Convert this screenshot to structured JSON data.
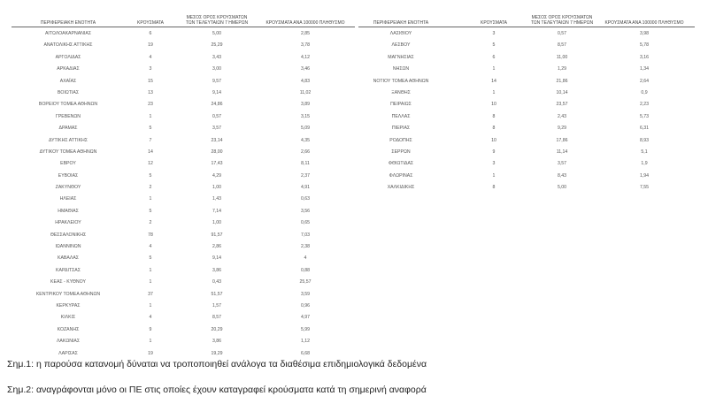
{
  "headers": {
    "region": "ΠΕΡΙΦΕΡΕΙΑΚΗ ΕΝΟΤΗΤΑ",
    "cases": "ΚΡΟΥΣΜΑΤΑ",
    "avg": "ΜΕΣΟΣ ΟΡΟΣ ΚΡΟΥΣΜΑΤΩΝ ΤΩΝ ΤΕΛΕΥΤΑΙΩΝ 7 ΗΜΕΡΩΝ",
    "per100k": "ΚΡΟΥΣΜΑΤΑ ΑΝΑ 100000 ΠΛΗΘΥΣΜΟ"
  },
  "left_rows": [
    [
      "ΑΙΤΩΛΟΑΚΑΡΝΑΝΙΑΣ",
      "6",
      "5,00",
      "2,85"
    ],
    [
      "ΑΝΑΤΟΛΙΚΗΣ ΑΤΤΙΚΗΣ",
      "19",
      "25,29",
      "3,78"
    ],
    [
      "ΑΡΓΟΛΙΔΑΣ",
      "4",
      "3,43",
      "4,12"
    ],
    [
      "ΑΡΚΑΔΙΑΣ",
      "3",
      "3,00",
      "3,46"
    ],
    [
      "ΑΧΑΪΑΣ",
      "15",
      "9,57",
      "4,83"
    ],
    [
      "ΒΟΙΩΤΙΑΣ",
      "13",
      "9,14",
      "11,02"
    ],
    [
      "ΒΟΡΕΙΟΥ ΤΟΜΕΑ ΑΘΗΝΩΝ",
      "23",
      "24,86",
      "3,89"
    ],
    [
      "ΓΡΕΒΕΝΩΝ",
      "1",
      "0,57",
      "3,15"
    ],
    [
      "ΔΡΑΜΑΣ",
      "5",
      "3,57",
      "5,09"
    ],
    [
      "ΔΥΤΙΚΗΣ ΑΤΤΙΚΗΣ",
      "7",
      "23,14",
      "4,35"
    ],
    [
      "ΔΥΤΙΚΟΥ ΤΟΜΕΑ ΑΘΗΝΩΝ",
      "14",
      "28,00",
      "2,66"
    ],
    [
      "ΕΒΡΟΥ",
      "12",
      "17,43",
      "8,11"
    ],
    [
      "ΕΥΒΟΙΑΣ",
      "5",
      "4,29",
      "2,37"
    ],
    [
      "ΖΑΚΥΝΘΟΥ",
      "2",
      "1,00",
      "4,91"
    ],
    [
      "ΗΛΕΙΑΣ",
      "1",
      "1,43",
      "0,63"
    ],
    [
      "ΗΜΑΘΙΑΣ",
      "5",
      "7,14",
      "3,56"
    ],
    [
      "ΗΡΑΚΛΕΙΟΥ",
      "2",
      "1,00",
      "0,65"
    ],
    [
      "ΘΕΣΣΑΛΟΝΙΚΗΣ",
      "78",
      "91,57",
      "7,03"
    ],
    [
      "ΙΩΑΝΝΙΝΩΝ",
      "4",
      "2,86",
      "2,38"
    ],
    [
      "ΚΑΒΑΛΑΣ",
      "5",
      "9,14",
      "4"
    ],
    [
      "ΚΑΡΔΙΤΣΑΣ",
      "1",
      "3,86",
      "0,88"
    ],
    [
      "ΚΕΑΣ - ΚΥΘΝΟΥ",
      "1",
      "0,43",
      "25,57"
    ],
    [
      "ΚΕΝΤΡΙΚΟΥ ΤΟΜΕΑ ΑΘΗΝΩΝ",
      "37",
      "51,57",
      "3,59"
    ],
    [
      "ΚΕΡΚΥΡΑΣ",
      "1",
      "1,57",
      "0,96"
    ],
    [
      "ΚΙΛΚΙΣ",
      "4",
      "8,57",
      "4,97"
    ],
    [
      "ΚΟΖΑΝΗΣ",
      "9",
      "20,29",
      "5,99"
    ],
    [
      "ΛΑΚΩΝΙΑΣ",
      "1",
      "3,86",
      "1,12"
    ],
    [
      "ΛΑΡΙΣΑΣ",
      "19",
      "19,29",
      "6,68"
    ]
  ],
  "right_rows": [
    [
      "ΛΑΣΙΘΙΟΥ",
      "3",
      "0,57",
      "3,98"
    ],
    [
      "ΛΕΣΒΟΥ",
      "5",
      "8,57",
      "5,78"
    ],
    [
      "ΜΑΓΝΗΣΙΑΣ",
      "6",
      "11,00",
      "3,16"
    ],
    [
      "ΝΗΣΩΝ",
      "1",
      "1,29",
      "1,34"
    ],
    [
      "ΝΟΤΙΟΥ ΤΟΜΕΑ ΑΘΗΝΩΝ",
      "14",
      "21,86",
      "2,64"
    ],
    [
      "ΞΑΝΘΗΣ",
      "1",
      "10,14",
      "0,9"
    ],
    [
      "ΠΕΙΡΑΙΩΣ",
      "10",
      "23,57",
      "2,23"
    ],
    [
      "ΠΕΛΛΑΣ",
      "8",
      "2,43",
      "5,73"
    ],
    [
      "ΠΙΕΡΙΑΣ",
      "8",
      "9,29",
      "6,31"
    ],
    [
      "ΡΟΔΟΠΗΣ",
      "10",
      "17,86",
      "8,93"
    ],
    [
      "ΣΕΡΡΩΝ",
      "9",
      "11,14",
      "5,1"
    ],
    [
      "ΦΘΙΩΤΙΔΑΣ",
      "3",
      "3,57",
      "1,9"
    ],
    [
      "ΦΛΩΡΙΝΑΣ",
      "1",
      "8,43",
      "1,94"
    ],
    [
      "ΧΑΛΚΙΔΙΚΗΣ",
      "8",
      "5,00",
      "7,55"
    ]
  ],
  "notes": [
    "Σημ.1: η παρούσα κατανομή δύναται να τροποποιηθεί ανάλογα τα διαθέσιμα επιδημιολογικά δεδομένα",
    "Σημ.2: αναγράφονται μόνο οι ΠΕ στις οποίες έχουν καταγραφεί κρούσματα κατά τη σημερινή αναφορά"
  ]
}
